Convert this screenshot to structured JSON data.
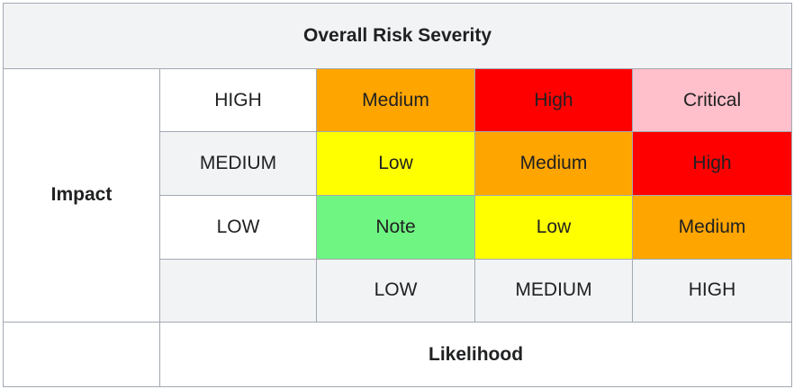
{
  "title": "Overall Risk Severity",
  "impact_label": "Impact",
  "likelihood_label": "Likelihood",
  "rows": [
    {
      "impact": "HIGH",
      "cells": [
        {
          "text": "Medium",
          "color": "#ffa500"
        },
        {
          "text": "High",
          "color": "#ff0000"
        },
        {
          "text": "Critical",
          "color": "#ffc0cb"
        }
      ]
    },
    {
      "impact": "MEDIUM",
      "cells": [
        {
          "text": "Low",
          "color": "#ffff00"
        },
        {
          "text": "Medium",
          "color": "#ffa500"
        },
        {
          "text": "High",
          "color": "#ff0000"
        }
      ]
    },
    {
      "impact": "LOW",
      "cells": [
        {
          "text": "Note",
          "color": "#6ff581"
        },
        {
          "text": "Low",
          "color": "#ffff00"
        },
        {
          "text": "Medium",
          "color": "#ffa500"
        }
      ]
    }
  ],
  "likelihood_levels": [
    "LOW",
    "MEDIUM",
    "HIGH"
  ],
  "colors": {
    "border": "#a2a9b1",
    "header_bg": "#f2f3f5"
  }
}
